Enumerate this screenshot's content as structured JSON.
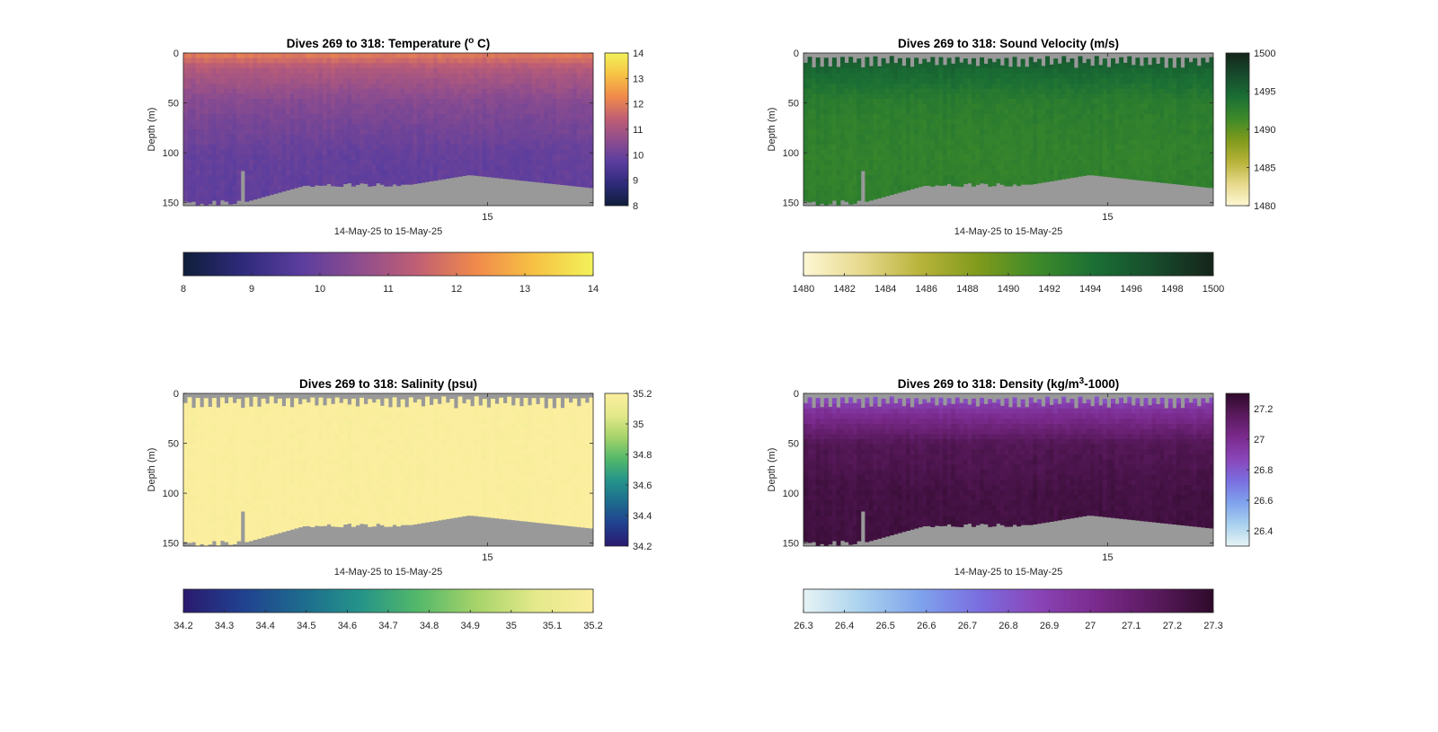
{
  "chart_data": [
    {
      "type": "heatmap",
      "title_main": "Dives 269 to 318: Temperature (",
      "title_sup": "o",
      "title_tail": " C)",
      "xlabel": "14-May-25 to 15-May-25",
      "ylabel": "Depth (m)",
      "x_ticks": [
        "15"
      ],
      "y_ticks": [
        0,
        50,
        100,
        150
      ],
      "ylim": [
        0,
        153
      ],
      "colorbar_right_ticks": [
        8,
        9,
        10,
        11,
        12,
        13,
        14
      ],
      "colorbar_right_labels": [
        "8",
        "9",
        "10",
        "11",
        "12",
        "13",
        "14"
      ],
      "colorbar_bottom_ticks": [
        8,
        9,
        10,
        11,
        12,
        13,
        14
      ],
      "colorbar_bottom_labels": [
        "8",
        "9",
        "10",
        "11",
        "12",
        "13",
        "14"
      ],
      "clim": [
        8,
        14
      ],
      "colormap": [
        "#0f1e3a",
        "#2e2a7a",
        "#5a3d9e",
        "#8e4d8e",
        "#c05f74",
        "#f08a4b",
        "#f7c244",
        "#f2f25a"
      ],
      "profile_depths": [
        0,
        15,
        50,
        100,
        150
      ],
      "profile_values": [
        12.1,
        11.2,
        10.4,
        9.9,
        9.8
      ],
      "nodata_color": "#999999"
    },
    {
      "type": "heatmap",
      "title_main": "Dives 269 to 318: Sound Velocity (m/s)",
      "title_sup": "",
      "title_tail": "",
      "xlabel": "14-May-25 to 15-May-25",
      "ylabel": "Depth (m)",
      "x_ticks": [
        "15"
      ],
      "y_ticks": [
        0,
        50,
        100,
        150
      ],
      "ylim": [
        0,
        153
      ],
      "colorbar_right_ticks": [
        1480,
        1485,
        1490,
        1495,
        1500
      ],
      "colorbar_right_labels": [
        "1480",
        "1485",
        "1490",
        "1495",
        "1500"
      ],
      "colorbar_bottom_ticks": [
        1480,
        1482,
        1484,
        1486,
        1488,
        1490,
        1492,
        1494,
        1496,
        1498,
        1500
      ],
      "colorbar_bottom_labels": [
        "1480",
        "1482",
        "1484",
        "1486",
        "1488",
        "1490",
        "1492",
        "1494",
        "1496",
        "1498",
        "1500"
      ],
      "clim": [
        1480,
        1500
      ],
      "colormap": [
        "#fdf7d4",
        "#e6d98c",
        "#b8b33a",
        "#7f9a1c",
        "#3d8a2a",
        "#1a6e34",
        "#174b2c",
        "#15241a"
      ],
      "profile_depths": [
        0,
        15,
        50,
        100,
        150
      ],
      "profile_values": [
        1496.5,
        1495.0,
        1492.8,
        1492.3,
        1492.5
      ],
      "nodata_color": "#999999"
    },
    {
      "type": "heatmap",
      "title_main": "Dives 269 to 318: Salinity (psu)",
      "title_sup": "",
      "title_tail": "",
      "xlabel": "14-May-25 to 15-May-25",
      "ylabel": "Depth (m)",
      "x_ticks": [
        "15"
      ],
      "y_ticks": [
        0,
        50,
        100,
        150
      ],
      "ylim": [
        0,
        153
      ],
      "colorbar_right_ticks": [
        34.2,
        34.4,
        34.6,
        34.8,
        35,
        35.2
      ],
      "colorbar_right_labels": [
        "34.2",
        "34.4",
        "34.6",
        "34.8",
        "35",
        "35.2"
      ],
      "colorbar_bottom_ticks": [
        34.2,
        34.3,
        34.4,
        34.5,
        34.6,
        34.7,
        34.8,
        34.9,
        35,
        35.1,
        35.2
      ],
      "colorbar_bottom_labels": [
        "34.2",
        "34.3",
        "34.4",
        "34.5",
        "34.6",
        "34.7",
        "34.8",
        "34.9",
        "35",
        "35.1",
        "35.2"
      ],
      "clim": [
        34.2,
        35.2
      ],
      "colormap": [
        "#2a1a6e",
        "#21408f",
        "#1d6a8e",
        "#24938a",
        "#53b86a",
        "#a6d36a",
        "#e3e98a",
        "#fbee9e"
      ],
      "profile_depths": [
        0,
        15,
        50,
        100,
        150
      ],
      "profile_values": [
        35.2,
        35.2,
        35.2,
        35.2,
        35.2
      ],
      "nodata_color": "#999999"
    },
    {
      "type": "heatmap",
      "title_main": "Dives 269 to 318: Density (kg/m",
      "title_sup": "3",
      "title_tail": "-1000)",
      "xlabel": "14-May-25 to 15-May-25",
      "ylabel": "Depth (m)",
      "x_ticks": [
        "15"
      ],
      "y_ticks": [
        0,
        50,
        100,
        150
      ],
      "ylim": [
        0,
        153
      ],
      "colorbar_right_ticks": [
        26.4,
        26.6,
        26.8,
        27,
        27.2
      ],
      "colorbar_right_labels": [
        "26.4",
        "26.6",
        "26.8",
        "27",
        "27.2"
      ],
      "colorbar_bottom_ticks": [
        26.3,
        26.4,
        26.5,
        26.6,
        26.7,
        26.8,
        26.9,
        27,
        27.1,
        27.2,
        27.3
      ],
      "colorbar_bottom_labels": [
        "26.3",
        "26.4",
        "26.5",
        "26.6",
        "26.7",
        "26.8",
        "26.9",
        "27",
        "27.1",
        "27.2",
        "27.3"
      ],
      "clim": [
        26.3,
        27.3
      ],
      "colormap": [
        "#e6f4f4",
        "#a9d1ee",
        "#7fa2ec",
        "#7a6ee0",
        "#8a45b8",
        "#7a2a8c",
        "#5a1a5e",
        "#2e0a2a"
      ],
      "profile_depths": [
        0,
        15,
        50,
        100,
        150
      ],
      "profile_values": [
        26.75,
        26.95,
        27.18,
        27.23,
        27.24
      ],
      "nodata_color": "#999999"
    }
  ]
}
